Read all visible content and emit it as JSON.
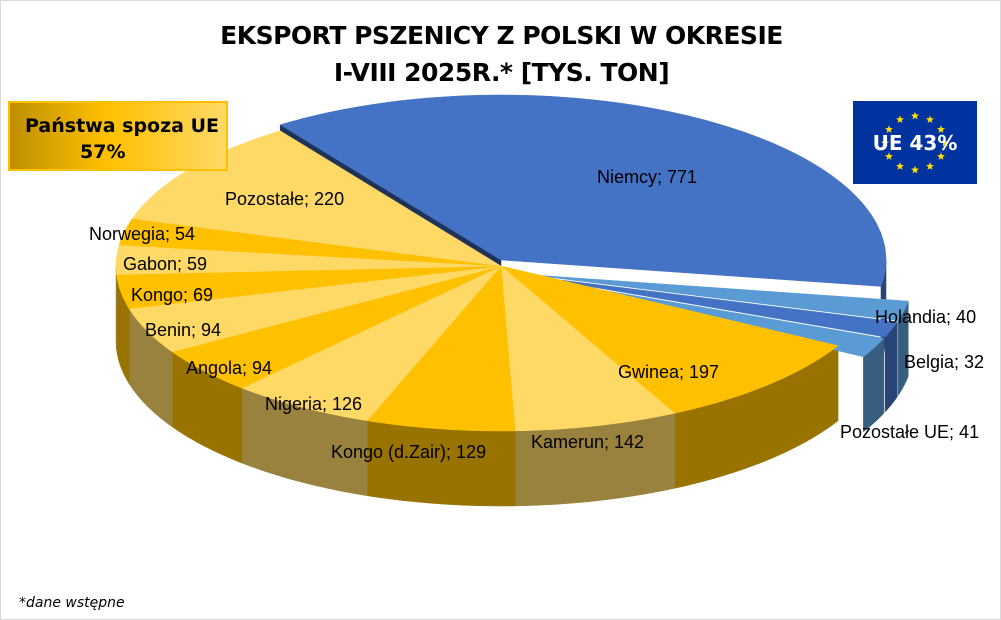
{
  "chart_data": {
    "type": "pie",
    "title_line1": "EKSPORT PSZENICY Z POLSKI W OKRESIE",
    "title_line2": "I-VIII 2025R.* [TYS. TON]",
    "unit": "tys. ton",
    "slices": [
      {
        "label": "Niemcy",
        "value": 771,
        "group": "UE",
        "display": "Niemcy; 771"
      },
      {
        "label": "Holandia",
        "value": 40,
        "group": "UE",
        "display": "Holandia; 40"
      },
      {
        "label": "Belgia",
        "value": 32,
        "group": "UE",
        "display": "Belgia; 32"
      },
      {
        "label": "Pozostałe UE",
        "value": 41,
        "group": "UE",
        "display": "Pozostałe UE; 41"
      },
      {
        "label": "Gwinea",
        "value": 197,
        "group": "non-UE",
        "display": "Gwinea; 197"
      },
      {
        "label": "Kamerun",
        "value": 142,
        "group": "non-UE",
        "display": "Kamerun; 142"
      },
      {
        "label": "Kongo (d.Zair)",
        "value": 129,
        "group": "non-UE",
        "display": "Kongo (d.Zair); 129"
      },
      {
        "label": "Nigeria",
        "value": 126,
        "group": "non-UE",
        "display": "Nigeria; 126"
      },
      {
        "label": "Angola",
        "value": 94,
        "group": "non-UE",
        "display": "Angola; 94"
      },
      {
        "label": "Benin",
        "value": 94,
        "group": "non-UE",
        "display": "Benin; 94"
      },
      {
        "label": "Kongo",
        "value": 69,
        "group": "non-UE",
        "display": "Kongo; 69"
      },
      {
        "label": "Gabon",
        "value": 59,
        "group": "non-UE",
        "display": "Gabon; 59"
      },
      {
        "label": "Norwegia",
        "value": 54,
        "group": "non-UE",
        "display": "Norwegia; 54"
      },
      {
        "label": "Pozostałe",
        "value": 220,
        "group": "non-UE",
        "display": "Pozostałe; 220"
      }
    ],
    "colors": {
      "Niemcy": "#4472C4",
      "Holandia": "#5B9BD5",
      "Belgia": "#4472C4",
      "Pozostałe UE": "#5B9BD5",
      "yellow_a": "#FFC000",
      "yellow_b": "#FFD966"
    }
  },
  "annotations": {
    "non_eu_label": "Państwa spoza UE",
    "non_eu_pct": "57%",
    "eu_label": "UE 43%",
    "footnote": "*dane wstępne"
  }
}
